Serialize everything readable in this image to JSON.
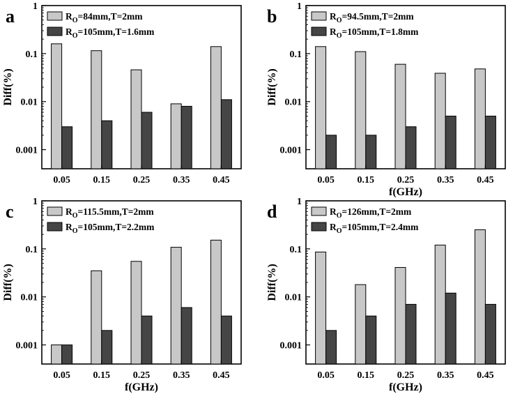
{
  "chart_data": [
    {
      "type": "bar",
      "panel": "a",
      "categories": [
        "0.05",
        "0.15",
        "0.25",
        "0.35",
        "0.45"
      ],
      "series": [
        {
          "name": "Ro=84mm,T=2mm",
          "label_main": "R",
          "label_sub": "O",
          "label_rest": "=84mm,T=2mm",
          "color": "#c8c8c8",
          "values": [
            0.16,
            0.115,
            0.046,
            0.009,
            0.14
          ]
        },
        {
          "name": "Ro=105mm,T=1.6mm",
          "label_main": "R",
          "label_sub": "O",
          "label_rest": "=105mm,T=1.6mm",
          "color": "#454545",
          "values": [
            0.003,
            0.004,
            0.006,
            0.008,
            0.011
          ]
        }
      ],
      "ylabel": "Diff(%)",
      "xlabel": "",
      "yscale": "log",
      "ylim": [
        0.0004,
        1
      ],
      "yticks": [
        "1",
        "0.1",
        "0.01",
        "0.001"
      ],
      "legend": "top-left"
    },
    {
      "type": "bar",
      "panel": "b",
      "categories": [
        "0.05",
        "0.15",
        "0.25",
        "0.35",
        "0.45"
      ],
      "series": [
        {
          "name": "Ro=94.5mm,T=2mm",
          "label_main": "R",
          "label_sub": "O",
          "label_rest": "=94.5mm,T=2mm",
          "color": "#c8c8c8",
          "values": [
            0.14,
            0.11,
            0.06,
            0.039,
            0.048
          ]
        },
        {
          "name": "Ro=105mm,T=1.8mm",
          "label_main": "R",
          "label_sub": "O",
          "label_rest": "=105mm,T=1.8mm",
          "color": "#454545",
          "values": [
            0.002,
            0.002,
            0.003,
            0.005,
            0.005
          ]
        }
      ],
      "ylabel": "Diff(%)",
      "xlabel": "f(GHz)",
      "yscale": "log",
      "ylim": [
        0.0004,
        1
      ],
      "yticks": [
        "1",
        "0.1",
        "0.01",
        "0.001"
      ],
      "legend": "top-left"
    },
    {
      "type": "bar",
      "panel": "c",
      "categories": [
        "0.05",
        "0.15",
        "0.25",
        "0.35",
        "0.45"
      ],
      "series": [
        {
          "name": "Ro=115.5mm,T=2mm",
          "label_main": "R",
          "label_sub": "O",
          "label_rest": "=115.5mm,T=2mm",
          "color": "#c8c8c8",
          "values": [
            0.001,
            0.035,
            0.055,
            0.108,
            0.152
          ]
        },
        {
          "name": "Ro=105mm,T=2.2mm",
          "label_main": "R",
          "label_sub": "O",
          "label_rest": "=105mm,T=2.2mm",
          "color": "#454545",
          "values": [
            0.001,
            0.002,
            0.004,
            0.006,
            0.004
          ]
        }
      ],
      "ylabel": "Diff(%)",
      "xlabel": "f(GHz)",
      "yscale": "log",
      "ylim": [
        0.0004,
        1
      ],
      "yticks": [
        "1",
        "0.1",
        "0.01",
        "0.001"
      ],
      "legend": "top-left"
    },
    {
      "type": "bar",
      "panel": "d",
      "categories": [
        "0.05",
        "0.15",
        "0.25",
        "0.35",
        "0.45"
      ],
      "series": [
        {
          "name": "Ro=126mm,T=2mm",
          "label_main": "R",
          "label_sub": "O",
          "label_rest": "=126mm,T=2mm",
          "color": "#c8c8c8",
          "values": [
            0.086,
            0.018,
            0.041,
            0.12,
            0.25
          ]
        },
        {
          "name": "Ro=105mm,T=2.4mm",
          "label_main": "R",
          "label_sub": "O",
          "label_rest": "=105mm,T=2.4mm",
          "color": "#454545",
          "values": [
            0.002,
            0.004,
            0.007,
            0.012,
            0.007
          ]
        }
      ],
      "ylabel": "Diff(%)",
      "xlabel": "f(GHz)",
      "yscale": "log",
      "ylim": [
        0.0004,
        1
      ],
      "yticks": [
        "1",
        "0.1",
        "0.01",
        "0.001"
      ],
      "legend": "top-left"
    }
  ]
}
